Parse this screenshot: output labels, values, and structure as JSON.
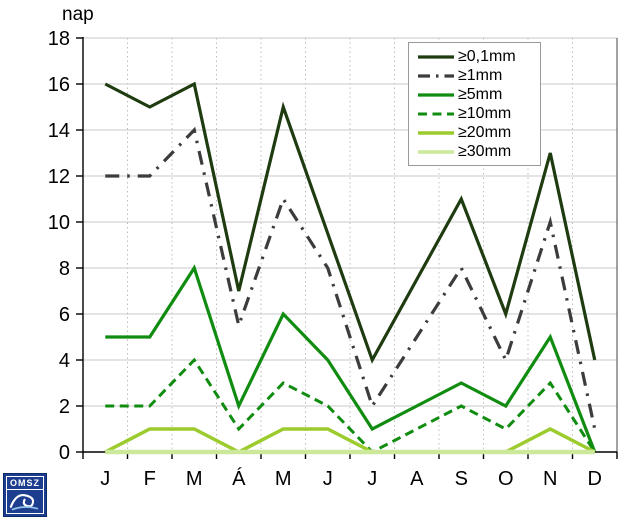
{
  "page": {
    "background": "#ffffff"
  },
  "chart_data": {
    "type": "line",
    "title": "",
    "ylabel": "nap",
    "xlabel": "",
    "categories": [
      "J",
      "F",
      "M",
      "Á",
      "M",
      "J",
      "J",
      "A",
      "S",
      "O",
      "N",
      "D"
    ],
    "y_ticks": [
      "0",
      "2",
      "4",
      "6",
      "8",
      "10",
      "12",
      "14",
      "16",
      "18"
    ],
    "ylim": [
      0,
      18
    ],
    "grid": "horizontal solid gray lines every 2; dotted vertical separators between months",
    "legend_position": "top-right inside plot",
    "series": [
      {
        "name": "≥0,1mm",
        "color": "#1e3c10",
        "style": "solid",
        "width": 3.2,
        "values": [
          16,
          15,
          16,
          7,
          15,
          9.5,
          4,
          7.5,
          11,
          6,
          13,
          4
        ]
      },
      {
        "name": "≥1mm",
        "color": "#3c3c3c",
        "style": "dash-dot",
        "width": 3.2,
        "values": [
          12,
          12,
          14,
          5.5,
          11,
          8,
          2,
          5,
          8,
          4,
          10,
          1
        ]
      },
      {
        "name": "≥5mm",
        "color": "#108c10",
        "style": "solid",
        "width": 3.2,
        "values": [
          5,
          5,
          8,
          2,
          6,
          4,
          1,
          2,
          3,
          2,
          5,
          0
        ]
      },
      {
        "name": "≥10mm",
        "color": "#108c10",
        "style": "dashed",
        "width": 3.0,
        "values": [
          2,
          2,
          4,
          1,
          3,
          2,
          0,
          1,
          2,
          1,
          3,
          0
        ]
      },
      {
        "name": "≥20mm",
        "color": "#9bcb2d",
        "style": "solid",
        "width": 3.5,
        "values": [
          0,
          1,
          1,
          0,
          1,
          1,
          0,
          0,
          0,
          0,
          1,
          0
        ]
      },
      {
        "name": "≥30mm",
        "color": "#cbe89b",
        "style": "solid",
        "width": 4.5,
        "values": [
          0,
          0,
          0,
          0,
          0,
          0,
          0,
          0,
          0,
          0,
          0,
          0
        ]
      }
    ]
  },
  "logo": {
    "text": "OMSZ",
    "bg": "#1d3e8e"
  }
}
